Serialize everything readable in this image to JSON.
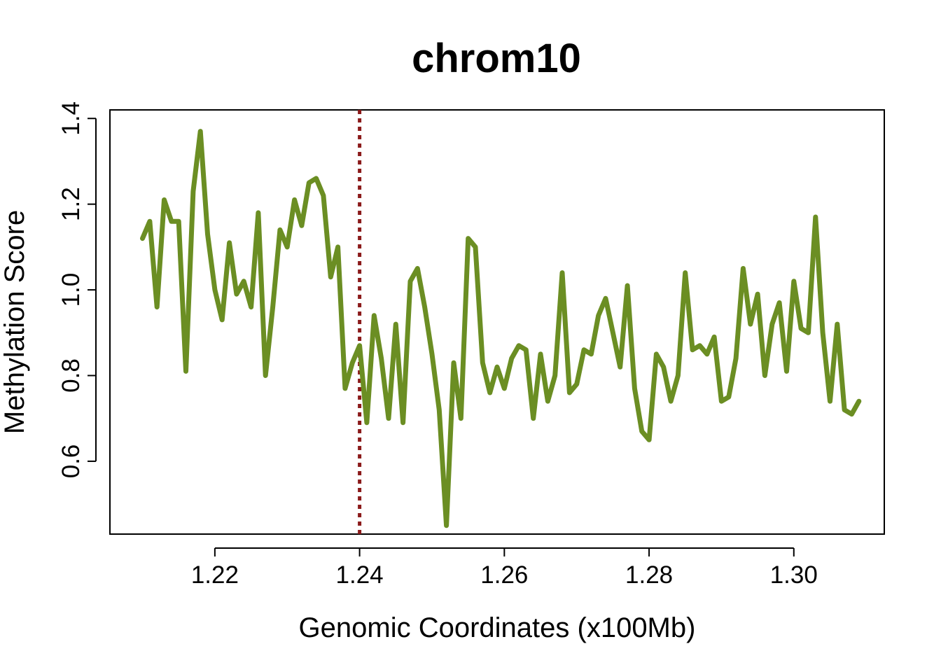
{
  "chart_data": {
    "type": "line",
    "title": "chrom10",
    "xlabel": "Genomic Coordinates (x100Mb)",
    "ylabel": "Methylation Score",
    "xlim": [
      1.2055,
      1.3125
    ],
    "ylim": [
      0.43,
      1.42
    ],
    "x_ticks": [
      "1.22",
      "1.24",
      "1.26",
      "1.28",
      "1.30"
    ],
    "y_ticks": [
      "0.6",
      "0.8",
      "1.0",
      "1.2",
      "1.4"
    ],
    "grid": false,
    "legend": "none",
    "line_color": "#6B8E23",
    "marker_color": "#8B1A1A",
    "marker_x": 1.24,
    "series": [
      {
        "x": [
          1.21,
          1.211,
          1.212,
          1.213,
          1.214,
          1.215,
          1.216,
          1.217,
          1.218,
          1.219,
          1.22,
          1.221,
          1.222,
          1.223,
          1.224,
          1.225,
          1.226,
          1.227,
          1.228,
          1.229,
          1.23,
          1.231,
          1.232,
          1.233,
          1.234,
          1.235,
          1.236,
          1.237,
          1.238,
          1.239,
          1.24,
          1.241,
          1.242,
          1.243,
          1.244,
          1.245,
          1.246,
          1.247,
          1.248,
          1.249,
          1.25,
          1.251,
          1.252,
          1.253,
          1.254,
          1.255,
          1.256,
          1.257,
          1.258,
          1.259,
          1.26,
          1.261,
          1.262,
          1.263,
          1.264,
          1.265,
          1.266,
          1.267,
          1.268,
          1.269,
          1.27,
          1.271,
          1.272,
          1.273,
          1.274,
          1.275,
          1.276,
          1.277,
          1.278,
          1.279,
          1.28,
          1.281,
          1.282,
          1.283,
          1.284,
          1.285,
          1.286,
          1.287,
          1.288,
          1.289,
          1.29,
          1.291,
          1.292,
          1.293,
          1.294,
          1.295,
          1.296,
          1.297,
          1.298,
          1.299,
          1.3,
          1.301,
          1.302,
          1.303,
          1.304,
          1.305,
          1.306,
          1.307,
          1.308,
          1.309
        ],
        "y": [
          1.12,
          1.16,
          0.96,
          1.21,
          1.16,
          1.16,
          0.81,
          1.23,
          1.37,
          1.13,
          1.0,
          0.93,
          1.11,
          0.99,
          1.02,
          0.96,
          1.18,
          0.8,
          0.96,
          1.14,
          1.1,
          1.21,
          1.15,
          1.25,
          1.26,
          1.22,
          1.03,
          1.1,
          0.77,
          0.83,
          0.87,
          0.69,
          0.94,
          0.84,
          0.7,
          0.92,
          0.69,
          1.02,
          1.05,
          0.96,
          0.85,
          0.72,
          0.45,
          0.83,
          0.7,
          1.12,
          1.1,
          0.83,
          0.76,
          0.82,
          0.77,
          0.84,
          0.87,
          0.86,
          0.7,
          0.85,
          0.74,
          0.8,
          1.04,
          0.76,
          0.78,
          0.86,
          0.85,
          0.94,
          0.98,
          0.9,
          0.82,
          1.01,
          0.77,
          0.67,
          0.65,
          0.85,
          0.82,
          0.74,
          0.8,
          1.04,
          0.86,
          0.87,
          0.85,
          0.89,
          0.74,
          0.75,
          0.84,
          1.05,
          0.92,
          0.99,
          0.8,
          0.92,
          0.97,
          0.81,
          1.02,
          0.91,
          0.9,
          1.17,
          0.9,
          0.74,
          0.92,
          0.72,
          0.71,
          0.74
        ]
      }
    ]
  }
}
